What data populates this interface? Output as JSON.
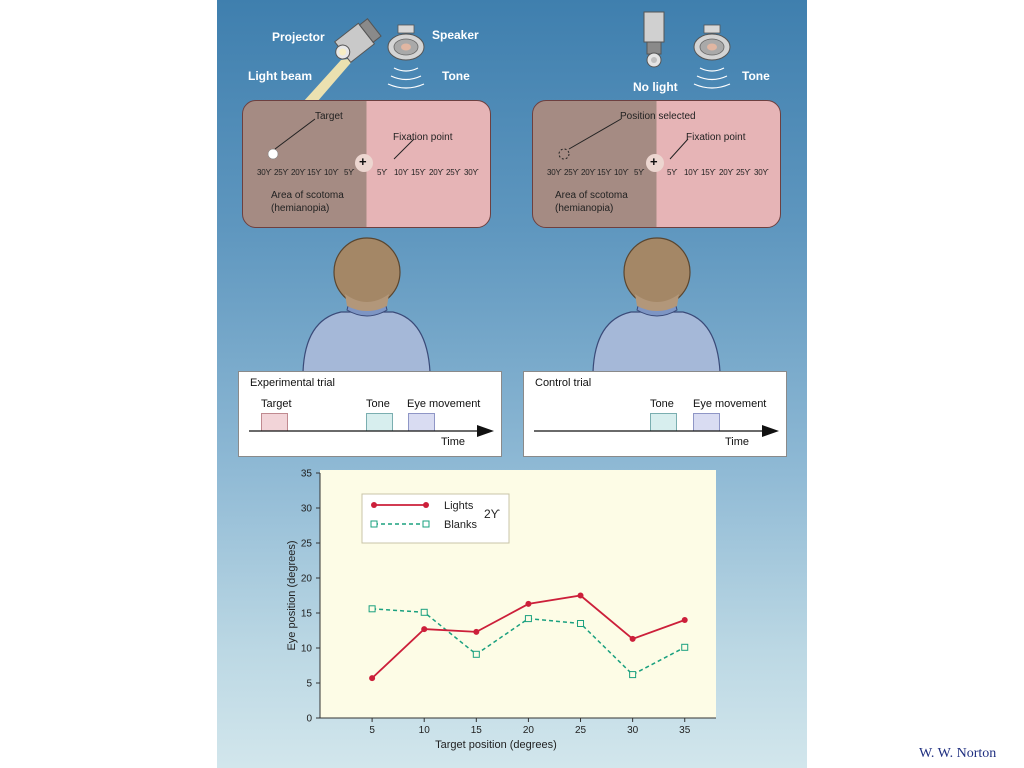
{
  "top": {
    "projector": "Projector",
    "light_beam": "Light beam",
    "speaker": "Speaker",
    "tone_left": "Tone",
    "no_light": "No light",
    "tone_right": "Tone"
  },
  "screen_left": {
    "target": "Target",
    "fixation": "Fixation point",
    "scotoma_line1": "Area of scotoma",
    "scotoma_line2": "(hemianopia)",
    "ticks_left": [
      "30ϒ",
      "25ϒ",
      "20ϒ",
      "15ϒ",
      "10ϒ",
      "5ϒ"
    ],
    "ticks_right": [
      "5ϒ",
      "10ϒ",
      "15ϒ",
      "20ϒ",
      "25ϒ",
      "30ϒ"
    ]
  },
  "screen_right": {
    "position_selected": "Position selected",
    "fixation": "Fixation point",
    "scotoma_line1": "Area of scotoma",
    "scotoma_line2": "(hemianopia)",
    "ticks_left": [
      "30ϒ",
      "25ϒ",
      "20ϒ",
      "15ϒ",
      "10ϒ",
      "5ϒ"
    ],
    "ticks_right": [
      "5ϒ",
      "10ϒ",
      "15ϒ",
      "20ϒ",
      "25ϒ",
      "30ϒ"
    ]
  },
  "experimental_trial": {
    "title": "Experimental trial",
    "target": "Target",
    "tone": "Tone",
    "eye_movement": "Eye movement",
    "time": "Time"
  },
  "control_trial": {
    "title": "Control trial",
    "tone": "Tone",
    "eye_movement": "Eye movement",
    "time": "Time"
  },
  "colors": {
    "target_pulse": "#f2d4d8",
    "tone_pulse": "#d7eeee",
    "eye_pulse": "#d9dcf2",
    "lights": "#cc1f3a",
    "blanks": "#1aa07f"
  },
  "chart_data": {
    "type": "line",
    "x": [
      5,
      10,
      15,
      20,
      25,
      30,
      35
    ],
    "series": [
      {
        "name": "Lights",
        "values": [
          5.7,
          12.7,
          12.3,
          16.3,
          17.5,
          11.3,
          14.0
        ]
      },
      {
        "name": "Blanks",
        "values": [
          15.6,
          15.1,
          9.1,
          14.2,
          13.5,
          6.2,
          10.1
        ]
      }
    ],
    "xlabel": "Target position (degrees)",
    "ylabel": "Eye position (degrees)",
    "xticks": [
      5,
      10,
      15,
      20,
      25,
      30,
      35
    ],
    "yticks": [
      0,
      5,
      10,
      15,
      20,
      25,
      30,
      35
    ],
    "xlim": [
      0,
      38
    ],
    "ylim": [
      0,
      35
    ],
    "legend_position": "top-left",
    "legend_note": "2ϒ",
    "grid": false
  },
  "credit": "W. W. Norton"
}
